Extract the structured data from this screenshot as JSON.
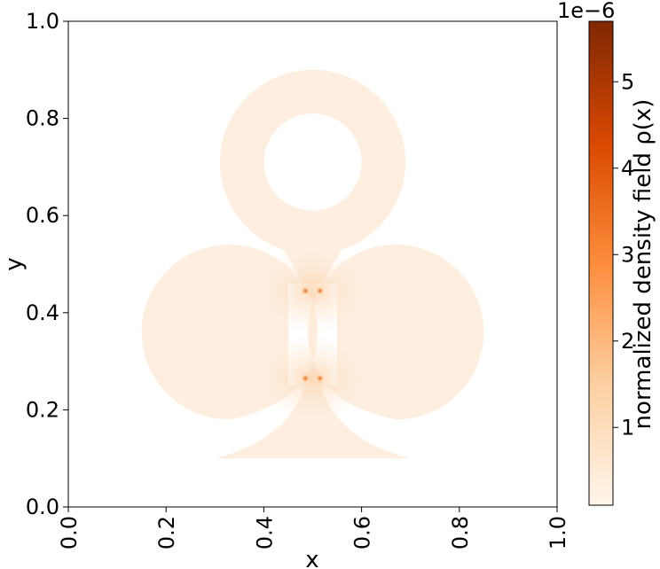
{
  "chart_data": {
    "type": "heatmap",
    "title": "",
    "xlabel": "x",
    "ylabel": "y",
    "xlim": [
      0.0,
      1.0
    ],
    "ylim": [
      0.0,
      1.0
    ],
    "x_ticks": [
      "0.0",
      "0.2",
      "0.4",
      "0.6",
      "0.8",
      "1.0"
    ],
    "y_ticks": [
      "0.0",
      "0.2",
      "0.4",
      "0.6",
      "0.8",
      "1.0"
    ],
    "grid": false,
    "shape": {
      "top_ring": {
        "center": [
          0.5,
          0.71
        ],
        "outer_radius": 0.19,
        "inner_radius": 0.1
      },
      "left_lobe": {
        "center": [
          0.33,
          0.36
        ],
        "radius": 0.18
      },
      "right_lobe": {
        "center": [
          0.67,
          0.36
        ],
        "radius": 0.18
      },
      "stem_base_y": 0.1,
      "stem_base_x": [
        0.3,
        0.7
      ]
    },
    "hotspots": [
      {
        "x": 0.485,
        "y": 0.445,
        "value": 4.5e-06
      },
      {
        "x": 0.515,
        "y": 0.445,
        "value": 4.5e-06
      },
      {
        "x": 0.485,
        "y": 0.265,
        "value": 4.5e-06
      },
      {
        "x": 0.515,
        "y": 0.265,
        "value": 4.5e-06
      }
    ],
    "colorbar": {
      "label": "normalized density field  ρ(x)",
      "multiplier": "1e−6",
      "ticks": [
        "1",
        "2",
        "3",
        "4",
        "5"
      ],
      "range": [
        0.1,
        5.7
      ],
      "cmap": [
        "#fff5eb",
        "#fdd0a2",
        "#fd8d3c",
        "#d94801",
        "#7f2704"
      ]
    }
  }
}
